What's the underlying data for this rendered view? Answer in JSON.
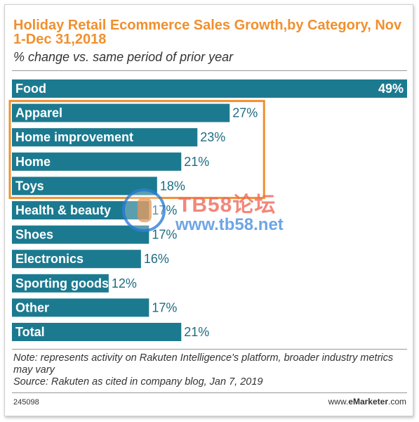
{
  "header": {
    "title": "Holiday Retail Ecommerce Sales Growth,by Category, Nov 1-Dec 31,2018",
    "subtitle": "% change vs. same period of prior year"
  },
  "colors": {
    "title": "#f0902f",
    "bar": "#1c7a90",
    "value": "#1c6c82",
    "highlight_box": "#f0902f"
  },
  "chart_data": {
    "type": "bar",
    "orientation": "horizontal",
    "categories": [
      "Food",
      "Apparel",
      "Home improvement",
      "Home",
      "Toys",
      "Health & beauty",
      "Shoes",
      "Electronics",
      "Sporting goods",
      "Other",
      "Total"
    ],
    "values": [
      49,
      27,
      23,
      21,
      18,
      17,
      17,
      16,
      12,
      17,
      21
    ],
    "value_labels": [
      "49%",
      "27%",
      "23%",
      "21%",
      "18%",
      "17%",
      "17%",
      "16%",
      "12%",
      "17%",
      "21%"
    ],
    "xlim": [
      0,
      49
    ],
    "grid": false,
    "legend": "none",
    "highlighted_categories": [
      "Apparel",
      "Home improvement",
      "Home",
      "Toys"
    ]
  },
  "footer": {
    "note": "Note: represents activity on Rakuten Intelligence's platform, broader industry metrics may vary",
    "source": "Source: Rakuten as cited in company blog, Jan 7, 2019",
    "chart_id": "245098",
    "brand_prefix": "www.",
    "brand_bold": "eMarketer",
    "brand_suffix": ".com"
  },
  "watermark": {
    "line1": "TB58论坛",
    "line2": "www.tb58.net"
  }
}
